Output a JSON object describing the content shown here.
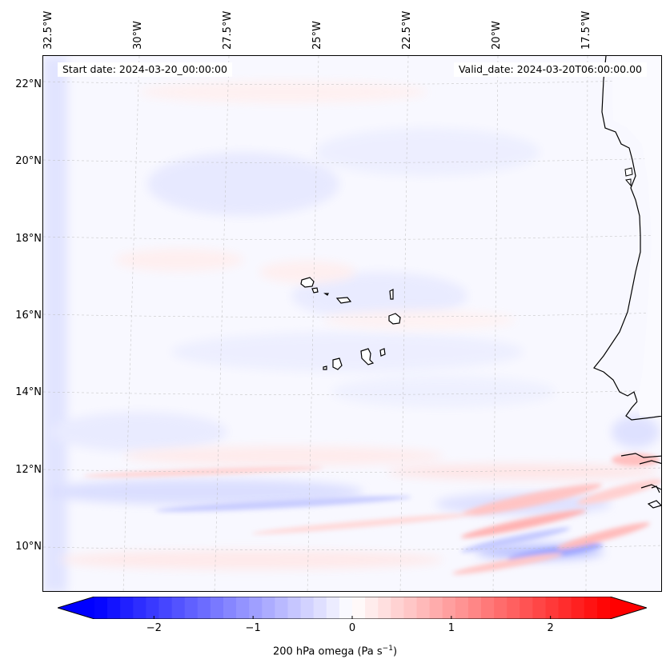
{
  "map": {
    "start_date": "Start date: 2024-03-20_00:00:00",
    "valid_date": "Valid_date: 2024-03-20T06:00:00.00",
    "lon_labels": [
      "32.5°W",
      "30°W",
      "27.5°W",
      "25°W",
      "22.5°W",
      "20°W",
      "17.5°W"
    ],
    "lat_labels": [
      "22°N",
      "20°N",
      "18°N",
      "16°N",
      "14°N",
      "12°N",
      "10°N"
    ],
    "extent": {
      "lon": [
        -33.0,
        -16.0
      ],
      "lat": [
        8.9,
        22.8
      ]
    },
    "features": [
      "Cabo Verde islands",
      "West African coastline (Mauritania, Senegal, Gambia, Guinea-Bissau)"
    ],
    "gridlines": true
  },
  "colorbar": {
    "colormap": "bwr",
    "colors": {
      "min": "#0000ff",
      "mid": "#ffffff",
      "max": "#ff0000"
    },
    "range": [
      -2.6,
      2.6
    ],
    "extend": "both",
    "ticks": [
      "−2",
      "−1",
      "0",
      "1",
      "2"
    ],
    "tick_values": [
      -2,
      -1,
      0,
      1,
      2
    ],
    "label_main": "200 hPa omega (Pa s",
    "label_exp": "−1",
    "label_close": ")"
  }
}
